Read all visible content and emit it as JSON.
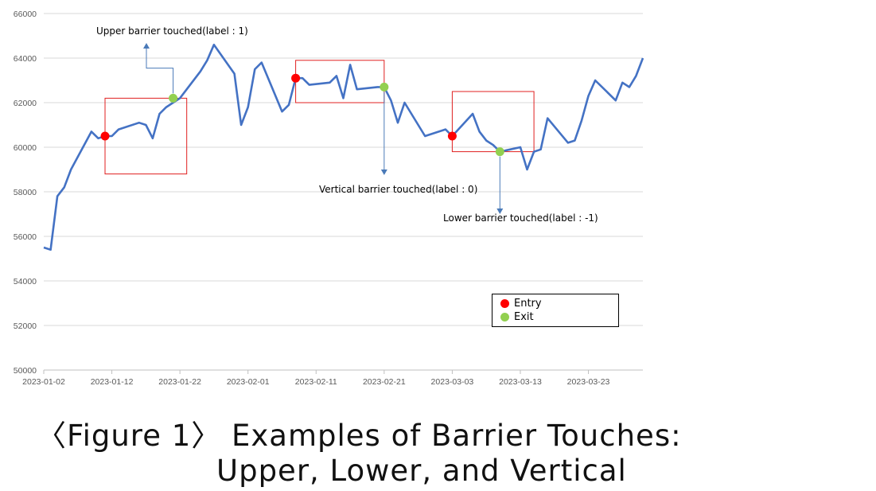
{
  "chart_data": {
    "type": "line",
    "title": "",
    "xlabel": "",
    "ylabel": "",
    "ylim": [
      50000,
      66000
    ],
    "yticks": [
      "50000",
      "52000",
      "54000",
      "56000",
      "58000",
      "60000",
      "62000",
      "64000",
      "66000"
    ],
    "xticks": [
      "2023-01-02",
      "2023-01-12",
      "2023-01-22",
      "2023-02-01",
      "2023-02-11",
      "2023-02-21",
      "2023-03-03",
      "2023-03-13",
      "2023-03-23"
    ],
    "x_date_start": "2023-01-02",
    "series": [
      {
        "color": "#4472C4",
        "points": [
          [
            "2023-01-02",
            55500
          ],
          [
            "2023-01-03",
            55400
          ],
          [
            "2023-01-04",
            57800
          ],
          [
            "2023-01-05",
            58200
          ],
          [
            "2023-01-06",
            59000
          ],
          [
            "2023-01-09",
            60700
          ],
          [
            "2023-01-10",
            60400
          ],
          [
            "2023-01-11",
            60500
          ],
          [
            "2023-01-12",
            60500
          ],
          [
            "2023-01-13",
            60800
          ],
          [
            "2023-01-16",
            61100
          ],
          [
            "2023-01-17",
            61000
          ],
          [
            "2023-01-18",
            60400
          ],
          [
            "2023-01-19",
            61500
          ],
          [
            "2023-01-20",
            61800
          ],
          [
            "2023-01-22",
            62200
          ],
          [
            "2023-01-25",
            63400
          ],
          [
            "2023-01-26",
            63900
          ],
          [
            "2023-01-27",
            64600
          ],
          [
            "2023-01-30",
            63300
          ],
          [
            "2023-01-31",
            61000
          ],
          [
            "2023-02-01",
            61800
          ],
          [
            "2023-02-02",
            63500
          ],
          [
            "2023-02-03",
            63800
          ],
          [
            "2023-02-06",
            61600
          ],
          [
            "2023-02-07",
            61900
          ],
          [
            "2023-02-08",
            63100
          ],
          [
            "2023-02-09",
            63100
          ],
          [
            "2023-02-10",
            62800
          ],
          [
            "2023-02-13",
            62900
          ],
          [
            "2023-02-14",
            63200
          ],
          [
            "2023-02-15",
            62200
          ],
          [
            "2023-02-16",
            63700
          ],
          [
            "2023-02-17",
            62600
          ],
          [
            "2023-02-20",
            62700
          ],
          [
            "2023-02-21",
            62700
          ],
          [
            "2023-02-22",
            62100
          ],
          [
            "2023-02-23",
            61100
          ],
          [
            "2023-02-24",
            62000
          ],
          [
            "2023-02-27",
            60500
          ],
          [
            "2023-03-02",
            60800
          ],
          [
            "2023-03-03",
            60500
          ],
          [
            "2023-03-06",
            61500
          ],
          [
            "2023-03-07",
            60700
          ],
          [
            "2023-03-08",
            60300
          ],
          [
            "2023-03-09",
            60100
          ],
          [
            "2023-03-10",
            59800
          ],
          [
            "2023-03-13",
            60000
          ],
          [
            "2023-03-14",
            59000
          ],
          [
            "2023-03-15",
            59800
          ],
          [
            "2023-03-16",
            59900
          ],
          [
            "2023-03-17",
            61300
          ],
          [
            "2023-03-20",
            60200
          ],
          [
            "2023-03-21",
            60300
          ],
          [
            "2023-03-22",
            61200
          ],
          [
            "2023-03-23",
            62300
          ],
          [
            "2023-03-24",
            63000
          ],
          [
            "2023-03-27",
            62100
          ],
          [
            "2023-03-28",
            62900
          ],
          [
            "2023-03-29",
            62700
          ],
          [
            "2023-03-30",
            63200
          ],
          [
            "2023-03-31",
            64000
          ]
        ]
      }
    ],
    "entry_points": [
      [
        "2023-01-11",
        60500
      ],
      [
        "2023-02-08",
        63100
      ],
      [
        "2023-03-03",
        60500
      ]
    ],
    "exit_points": [
      [
        "2023-01-21",
        62200
      ],
      [
        "2023-02-21",
        62700
      ],
      [
        "2023-03-10",
        59800
      ]
    ],
    "barrier_boxes": [
      {
        "x0": "2023-01-11",
        "x1": "2023-01-23",
        "y0": 58800,
        "y1": 62200
      },
      {
        "x0": "2023-02-08",
        "x1": "2023-02-21",
        "y0": 62000,
        "y1": 63900
      },
      {
        "x0": "2023-03-03",
        "x1": "2023-03-15",
        "y0": 59800,
        "y1": 62500
      }
    ],
    "annotations": [
      {
        "text": "Upper barrier touched(label : 1)"
      },
      {
        "text": "Vertical barrier touched(label : 0)"
      },
      {
        "text": "Lower barrier touched(label : -1)"
      }
    ],
    "legend": {
      "placement": "bottom-right",
      "items": [
        {
          "label": "Entry",
          "color": "#FF0000"
        },
        {
          "label": "Exit",
          "color": "#92D050"
        }
      ]
    },
    "grid": true
  },
  "caption": {
    "line1": "〈Figure 1〉 Examples of Barrier Touches:",
    "line2": "Upper, Lower, and Vertical"
  }
}
